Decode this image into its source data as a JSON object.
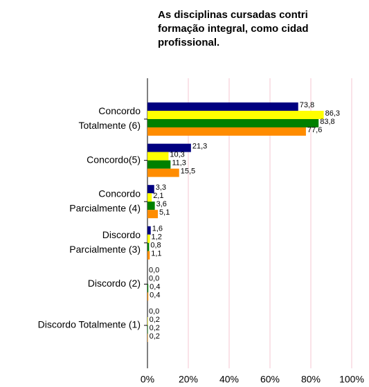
{
  "chart_data": {
    "type": "hbar",
    "title": [
      "As disciplinas cursadas contri",
      "formação integral, como cidad",
      "profissional."
    ],
    "categories": [
      [
        "Concordo",
        "Totalmente (6)"
      ],
      [
        "Concordo(5)"
      ],
      [
        "Concordo",
        "Parcialmente (4)"
      ],
      [
        "Discordo",
        "Parcialmente (3)"
      ],
      [
        "Discordo (2)"
      ],
      [
        "Discordo Totalmente (1)"
      ]
    ],
    "series": [
      {
        "color": "#000080",
        "values": [
          73.8,
          21.3,
          3.3,
          1.6,
          0,
          0
        ],
        "value_labels": [
          "73,8",
          "21,3",
          "3,3",
          "1,6",
          "0,0",
          "0,0"
        ]
      },
      {
        "color": "#ffff00",
        "values": [
          86.3,
          10.3,
          2.1,
          1.2,
          0,
          0.2
        ],
        "value_labels": [
          "86,3",
          "10,3",
          "2,1",
          "1,2",
          "0,0",
          "0,2"
        ]
      },
      {
        "color": "#008000",
        "values": [
          83.8,
          11.3,
          3.6,
          0.8,
          0.4,
          0.2
        ],
        "value_labels": [
          "83,8",
          "11,3",
          "3,6",
          "0,8",
          "0,4",
          "0,2"
        ]
      },
      {
        "color": "#ff8c00",
        "values": [
          77.6,
          15.5,
          5.1,
          1.1,
          0.4,
          0.2
        ],
        "value_labels": [
          "77,6",
          "15,5",
          "5,1",
          "1,1",
          "0,4",
          "0,2"
        ]
      }
    ],
    "xlim": [
      0,
      100
    ],
    "xticks": [
      {
        "value": 0,
        "label": "0%"
      },
      {
        "value": 20,
        "label": "20%"
      },
      {
        "value": 40,
        "label": "40%"
      },
      {
        "value": 60,
        "label": "60%"
      },
      {
        "value": 80,
        "label": "80%"
      },
      {
        "value": 100,
        "label": "100%"
      }
    ],
    "grid": true,
    "grid_color": "#f4c6d0"
  }
}
